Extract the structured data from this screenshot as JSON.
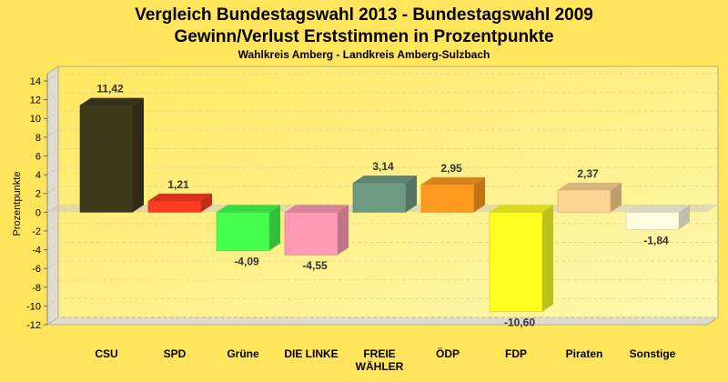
{
  "chart_data": {
    "type": "bar",
    "title": "Vergleich Bundestagswahl 2013 - Bundestagswahl 2009",
    "subtitle1": "Gewinn/Verlust Erststimmen in Prozentpunkte",
    "subtitle2": "Wahlkreis Amberg - Landkreis Amberg-Sulzbach",
    "xlabel": "",
    "ylabel": "Prozentpunkte",
    "ylim": [
      -12,
      14
    ],
    "yticks": [
      14,
      12,
      10,
      8,
      6,
      4,
      2,
      0,
      -2,
      -4,
      -6,
      -8,
      -10,
      -12
    ],
    "grid": true,
    "categories": [
      [
        "CSU"
      ],
      [
        "SPD"
      ],
      [
        "Grüne"
      ],
      [
        "DIE LINKE"
      ],
      [
        "FREIE",
        "WÄHLER"
      ],
      [
        "ÖDP"
      ],
      [
        "FDP"
      ],
      [
        "Piraten"
      ],
      [
        "Sonstige"
      ]
    ],
    "values": [
      11.42,
      1.21,
      -4.09,
      -4.55,
      3.14,
      2.95,
      -10.6,
      2.37,
      -1.84
    ],
    "labels": [
      "11,42",
      "1,21",
      "-4,09",
      "-4,55",
      "3,14",
      "2,95",
      "-10,60",
      "2,37",
      "-1,84"
    ],
    "colors": [
      "#3d3a1c",
      "#ff3a22",
      "#44ff4c",
      "#ff9ab4",
      "#6e9a84",
      "#ff9a20",
      "#ffff22",
      "#ffd492",
      "#fffde0"
    ]
  }
}
